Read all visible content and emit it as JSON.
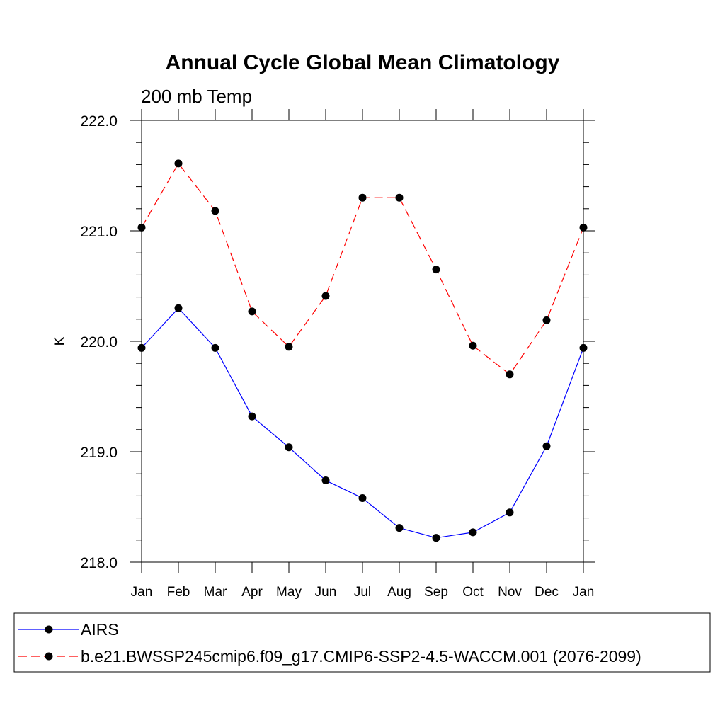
{
  "chart_data": {
    "type": "line",
    "title": "Annual Cycle Global Mean Climatology",
    "subtitle": "200 mb Temp",
    "xlabel": "",
    "ylabel": "K",
    "categories": [
      "Jan",
      "Feb",
      "Mar",
      "Apr",
      "May",
      "Jun",
      "Jul",
      "Aug",
      "Sep",
      "Oct",
      "Nov",
      "Dec",
      "Jan"
    ],
    "ylim": [
      218.0,
      222.0
    ],
    "yticks": [
      "218.0",
      "219.0",
      "220.0",
      "221.0",
      "222.0"
    ],
    "grid": false,
    "legend_position": "bottom",
    "series": [
      {
        "name": "AIRS",
        "color": "#0000ff",
        "dash": "solid",
        "values": [
          219.94,
          220.3,
          219.94,
          219.32,
          219.04,
          218.74,
          218.58,
          218.31,
          218.22,
          218.27,
          218.45,
          219.05,
          219.94
        ]
      },
      {
        "name": "b.e21.BWSSP245cmip6.f09_g17.CMIP6-SSP2-4.5-WACCM.001 (2076-2099)",
        "color": "#ff0000",
        "dash": "dashed",
        "values": [
          221.03,
          221.61,
          221.18,
          220.27,
          219.95,
          220.41,
          221.3,
          221.3,
          220.65,
          219.96,
          219.7,
          220.19,
          221.03
        ]
      }
    ]
  }
}
